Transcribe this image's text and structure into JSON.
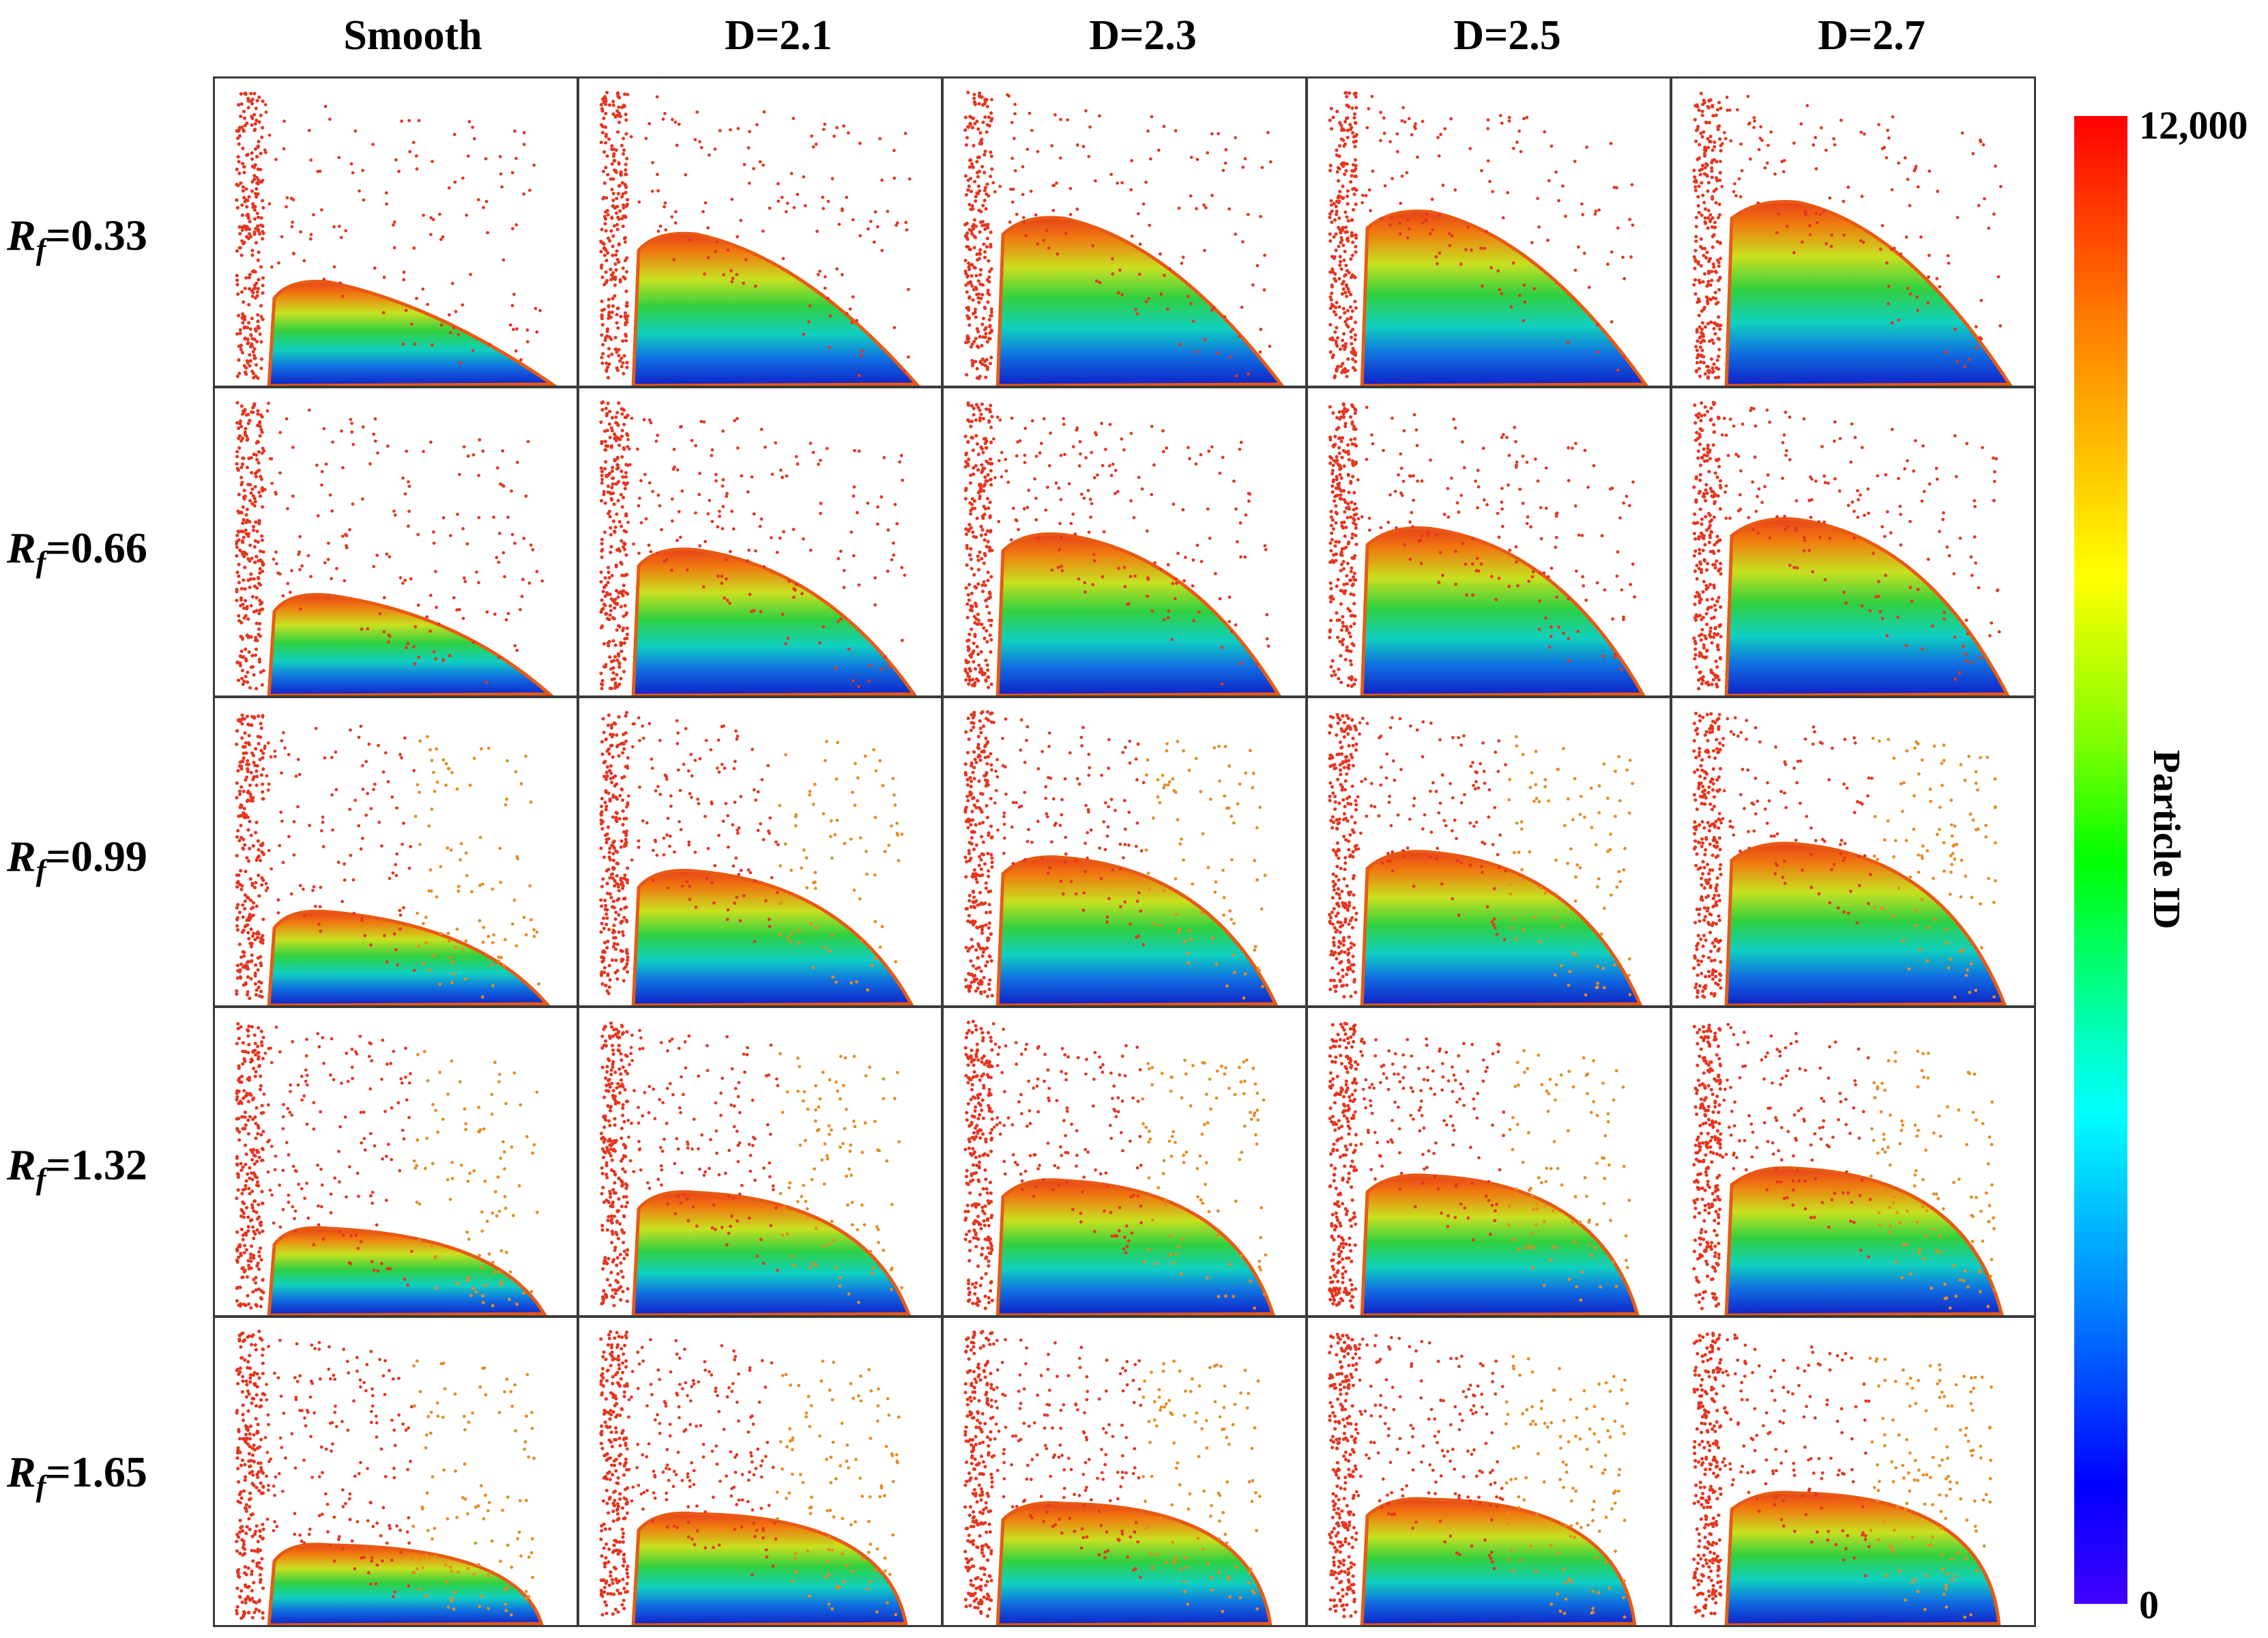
{
  "columns": [
    "Smooth",
    "D=2.1",
    "D=2.3",
    "D=2.5",
    "D=2.7"
  ],
  "rows": [
    {
      "symbol": "R",
      "subscript": "f",
      "value": "=0.33"
    },
    {
      "symbol": "R",
      "subscript": "f",
      "value": "=0.66"
    },
    {
      "symbol": "R",
      "subscript": "f",
      "value": "=0.99"
    },
    {
      "symbol": "R",
      "subscript": "f",
      "value": "=1.32"
    },
    {
      "symbol": "R",
      "subscript": "f",
      "value": "=1.65"
    }
  ],
  "colorbar": {
    "title": "Particle ID",
    "max_label": "12,000",
    "min_label": "0",
    "min_value": 0,
    "max_value": 12000,
    "colors": [
      "#ff0000",
      "#ff7f00",
      "#ffff00",
      "#00ff00",
      "#00ffff",
      "#0000ff",
      "#4000ff"
    ]
  }
}
